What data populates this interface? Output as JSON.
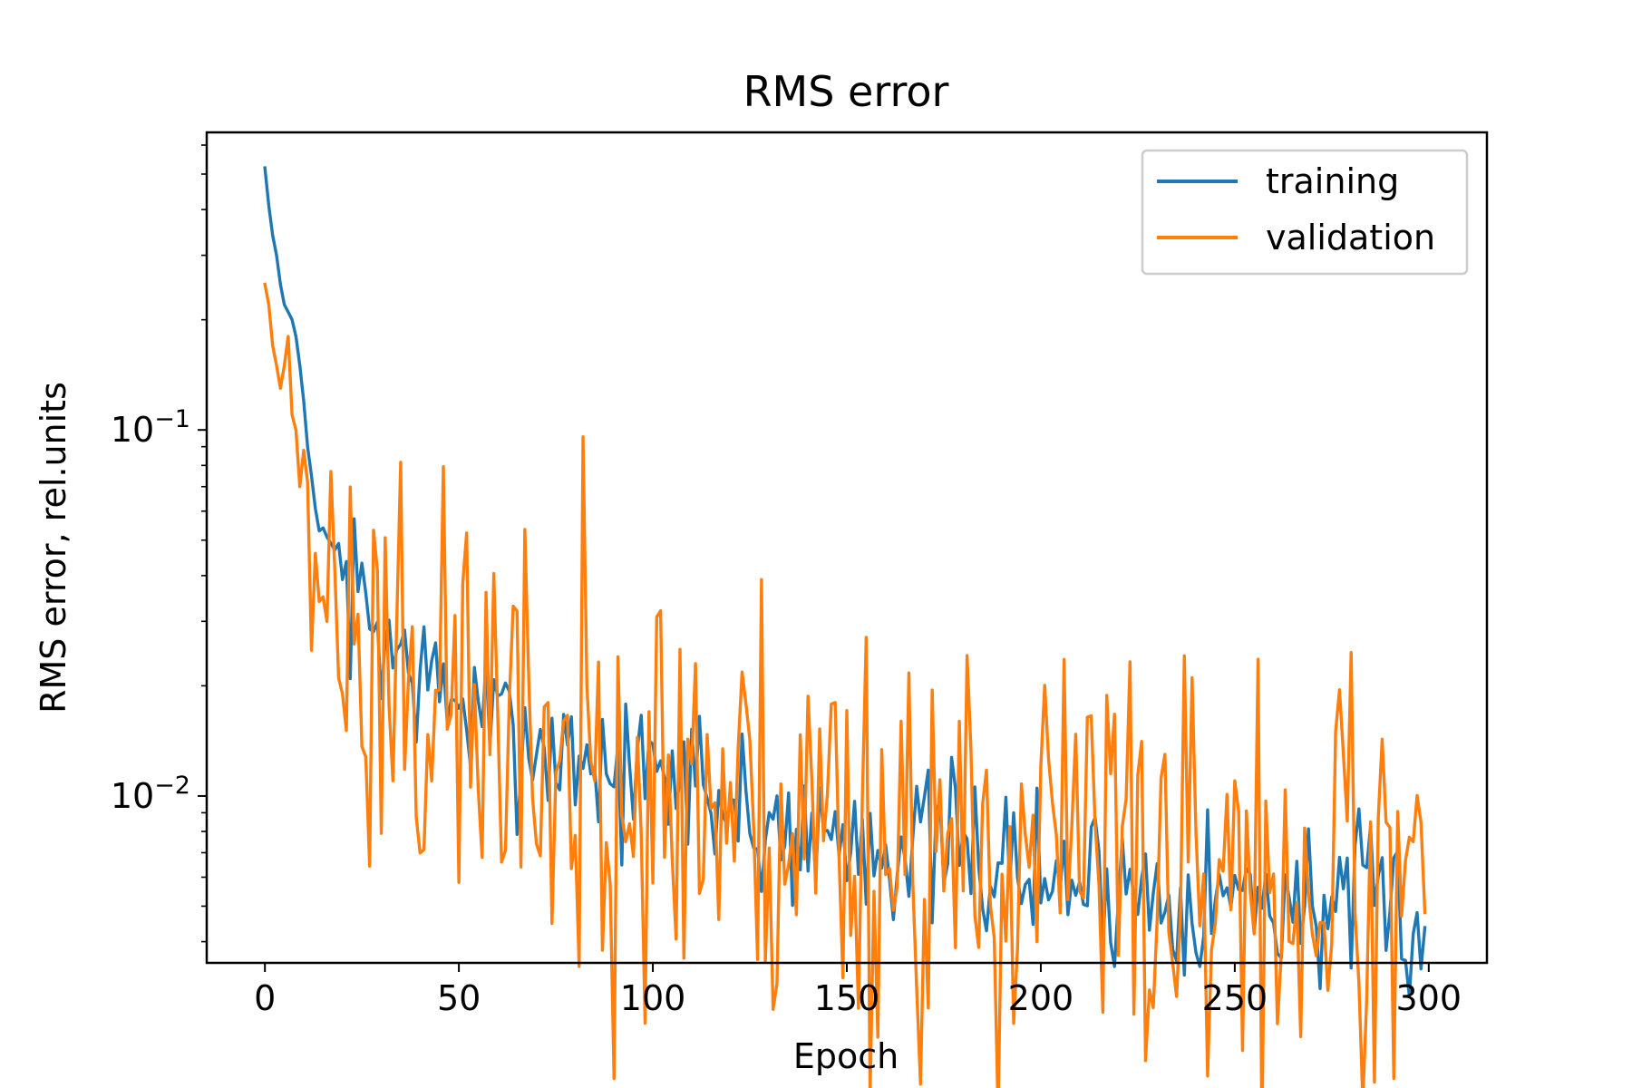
{
  "chart_data": {
    "type": "line",
    "title": "RMS error",
    "xlabel": "Epoch",
    "ylabel": "RMS error, rel.units",
    "xlim": [
      -15,
      315
    ],
    "ylim": [
      0.0035,
      0.65
    ],
    "yscale": "log",
    "x_ticks": [
      0,
      50,
      100,
      150,
      200,
      250,
      300
    ],
    "y_ticks": [
      {
        "value": 0.1,
        "base": "10",
        "exp": "−1"
      },
      {
        "value": 0.01,
        "base": "10",
        "exp": "−2"
      }
    ],
    "legend": {
      "position": "top-right"
    },
    "grid": false,
    "x_start": 0,
    "x_step": 1,
    "series": [
      {
        "name": "training",
        "color": "#1f77b4",
        "anchors": [
          [
            0,
            0.52
          ],
          [
            1,
            0.41
          ],
          [
            2,
            0.34
          ],
          [
            3,
            0.3
          ],
          [
            4,
            0.25
          ],
          [
            5,
            0.22
          ],
          [
            6,
            0.21
          ],
          [
            7,
            0.2
          ],
          [
            8,
            0.18
          ],
          [
            9,
            0.15
          ],
          [
            10,
            0.12
          ],
          [
            11,
            0.09
          ],
          [
            12,
            0.075
          ],
          [
            13,
            0.061
          ],
          [
            14,
            0.053
          ],
          [
            15,
            0.054
          ],
          [
            16,
            0.051
          ],
          [
            17,
            0.049
          ],
          [
            18,
            0.047
          ],
          [
            20,
            0.039
          ],
          [
            22,
            0.035
          ],
          [
            25,
            0.034
          ],
          [
            28,
            0.03
          ],
          [
            30,
            0.028
          ],
          [
            32,
            0.026
          ],
          [
            35,
            0.024
          ],
          [
            38,
            0.023
          ],
          [
            40,
            0.021
          ],
          [
            43,
            0.02
          ],
          [
            46,
            0.019
          ],
          [
            50,
            0.018
          ],
          [
            53,
            0.017
          ],
          [
            57,
            0.016
          ],
          [
            60,
            0.015
          ],
          [
            65,
            0.015
          ],
          [
            70,
            0.014
          ],
          [
            75,
            0.0135
          ],
          [
            80,
            0.013
          ],
          [
            85,
            0.0125
          ],
          [
            90,
            0.012
          ],
          [
            95,
            0.0115
          ],
          [
            100,
            0.011
          ],
          [
            105,
            0.0105
          ],
          [
            110,
            0.0102
          ],
          [
            115,
            0.0098
          ],
          [
            120,
            0.0094
          ],
          [
            125,
            0.0088
          ],
          [
            130,
            0.0084
          ],
          [
            135,
            0.0081
          ],
          [
            140,
            0.0079
          ],
          [
            145,
            0.0078
          ],
          [
            150,
            0.0077
          ],
          [
            155,
            0.0076
          ],
          [
            160,
            0.0075
          ],
          [
            165,
            0.0074
          ],
          [
            170,
            0.0073
          ],
          [
            175,
            0.0071
          ],
          [
            180,
            0.0069
          ],
          [
            185,
            0.0067
          ],
          [
            190,
            0.0065
          ],
          [
            195,
            0.0063
          ],
          [
            200,
            0.0062
          ],
          [
            205,
            0.006
          ],
          [
            210,
            0.0059
          ],
          [
            215,
            0.0058
          ],
          [
            220,
            0.0057
          ],
          [
            225,
            0.0056
          ],
          [
            230,
            0.0055
          ],
          [
            235,
            0.0055
          ],
          [
            240,
            0.0054
          ],
          [
            245,
            0.0054
          ],
          [
            250,
            0.0053
          ],
          [
            255,
            0.0053
          ],
          [
            260,
            0.0052
          ],
          [
            265,
            0.0052
          ],
          [
            270,
            0.0051
          ],
          [
            275,
            0.0051
          ],
          [
            280,
            0.005
          ],
          [
            285,
            0.005
          ],
          [
            290,
            0.0049
          ],
          [
            295,
            0.0049
          ],
          [
            299,
            0.0048
          ]
        ],
        "noise_amp": 0.11,
        "seed": 7,
        "spikes": [
          [
            91,
            0.0138
          ],
          [
            110,
            0.0152
          ],
          [
            112,
            0.0165
          ],
          [
            126,
            0.0072
          ],
          [
            178,
            0.0105
          ],
          [
            202,
            0.0052
          ],
          [
            222,
            0.0054
          ],
          [
            245,
            0.0052
          ],
          [
            259,
            0.0047
          ],
          [
            277,
            0.0068
          ],
          [
            296,
            0.0042
          ]
        ]
      },
      {
        "name": "validation",
        "color": "#ff7f0e",
        "anchors": [
          [
            0,
            0.25
          ],
          [
            1,
            0.22
          ],
          [
            2,
            0.17
          ],
          [
            3,
            0.15
          ],
          [
            4,
            0.13
          ],
          [
            5,
            0.15
          ],
          [
            6,
            0.18
          ],
          [
            7,
            0.11
          ],
          [
            8,
            0.1
          ],
          [
            9,
            0.07
          ],
          [
            10,
            0.088
          ],
          [
            11,
            0.072
          ],
          [
            12,
            0.025
          ],
          [
            13,
            0.046
          ],
          [
            14,
            0.034
          ],
          [
            15,
            0.035
          ],
          [
            16,
            0.03
          ],
          [
            17,
            0.077
          ],
          [
            18,
            0.042
          ],
          [
            19,
            0.021
          ],
          [
            20,
            0.019
          ],
          [
            22,
            0.031
          ],
          [
            25,
            0.024
          ],
          [
            28,
            0.019
          ],
          [
            30,
            0.027
          ],
          [
            33,
            0.022
          ],
          [
            35,
            0.036
          ],
          [
            38,
            0.021
          ],
          [
            40,
            0.018
          ],
          [
            45,
            0.017
          ],
          [
            50,
            0.016
          ],
          [
            55,
            0.015
          ],
          [
            60,
            0.015
          ],
          [
            65,
            0.014
          ],
          [
            70,
            0.014
          ],
          [
            75,
            0.013
          ],
          [
            80,
            0.0125
          ],
          [
            85,
            0.012
          ],
          [
            90,
            0.0115
          ],
          [
            95,
            0.011
          ],
          [
            100,
            0.0105
          ],
          [
            110,
            0.01
          ],
          [
            120,
            0.0095
          ],
          [
            130,
            0.009
          ],
          [
            140,
            0.0085
          ],
          [
            150,
            0.008
          ],
          [
            160,
            0.0078
          ],
          [
            170,
            0.0075
          ],
          [
            180,
            0.0072
          ],
          [
            190,
            0.007
          ],
          [
            200,
            0.0068
          ],
          [
            210,
            0.0066
          ],
          [
            220,
            0.0064
          ],
          [
            230,
            0.0062
          ],
          [
            240,
            0.006
          ],
          [
            250,
            0.0058
          ],
          [
            260,
            0.0057
          ],
          [
            270,
            0.0056
          ],
          [
            280,
            0.0055
          ],
          [
            290,
            0.0054
          ],
          [
            299,
            0.0052
          ]
        ],
        "noise_amp": 0.32,
        "seed": 23,
        "spikes": [
          [
            23,
            0.026
          ],
          [
            38,
            0.029
          ],
          [
            43,
            0.011
          ],
          [
            51,
            0.038
          ],
          [
            56,
            0.0068
          ],
          [
            57,
            0.036
          ],
          [
            61,
            0.0066
          ],
          [
            62,
            0.0071
          ],
          [
            64,
            0.033
          ],
          [
            66,
            0.0064
          ],
          [
            68,
            0.021
          ],
          [
            73,
            0.018
          ],
          [
            80,
            0.0078
          ],
          [
            85,
            0.011
          ],
          [
            91,
            0.024
          ],
          [
            93,
            0.0075
          ],
          [
            99,
            0.017
          ],
          [
            103,
            0.0068
          ],
          [
            111,
            0.023
          ],
          [
            135,
            0.0065
          ],
          [
            147,
            0.018
          ],
          [
            148,
            0.0068
          ],
          [
            160,
            0.0061
          ],
          [
            164,
            0.016
          ],
          [
            165,
            0.0061
          ],
          [
            175,
            0.0055
          ],
          [
            180,
            0.0055
          ],
          [
            200,
            0.012
          ],
          [
            210,
            0.0055
          ],
          [
            218,
            0.0115
          ],
          [
            225,
            0.0114
          ],
          [
            230,
            0.0046
          ],
          [
            232,
            0.013
          ],
          [
            245,
            0.0045
          ],
          [
            250,
            0.011
          ],
          [
            255,
            0.0042
          ],
          [
            270,
            0.0042
          ],
          [
            273,
            0.0045
          ],
          [
            276,
            0.015
          ],
          [
            277,
            0.0195
          ],
          [
            278,
            0.013
          ],
          [
            281,
            0.0048
          ],
          [
            285,
            0.0085
          ],
          [
            290,
            0.0082
          ],
          [
            293,
            0.0047
          ],
          [
            296,
            0.0075
          ],
          [
            299,
            0.0048
          ]
        ]
      }
    ]
  }
}
